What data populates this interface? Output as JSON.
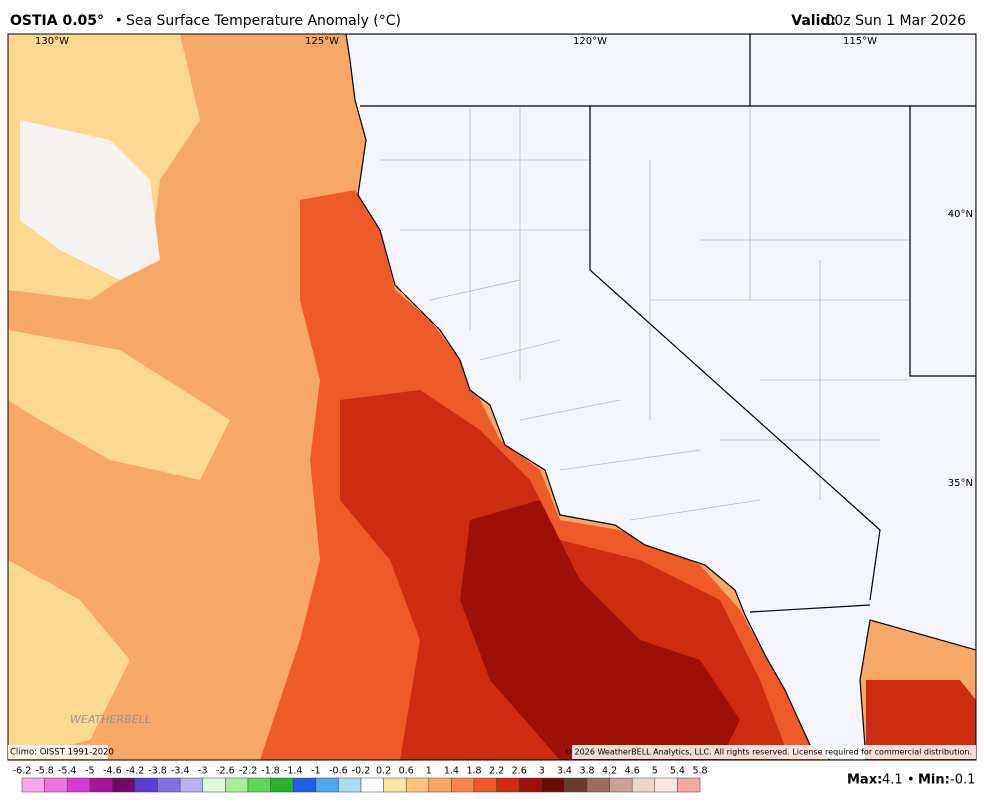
{
  "header": {
    "product": "OSTIA 0.05°",
    "separator": "•",
    "title": "Sea Surface Temperature Anomaly (°C)",
    "valid_label": "Valid:",
    "valid_time": "00z Sun 1 Mar 2026"
  },
  "map": {
    "lon_labels": [
      "130°W",
      "125°W",
      "120°W",
      "115°W"
    ],
    "lat_labels": [
      "40°N",
      "35°N"
    ],
    "logo": "WEATHERBELL",
    "climo": "Climo: OISST 1991-2020",
    "copyright": "© 2026 WeatherBELL Analytics, LLC. All rights reserved. License required for commercial distribution."
  },
  "legend": {
    "ticks": [
      -6.2,
      -5.8,
      -5.4,
      -5,
      -4.6,
      -4.2,
      -3.8,
      -3.4,
      -3,
      -2.6,
      -2.2,
      -1.8,
      -1.4,
      -1,
      -0.6,
      -0.2,
      0.2,
      0.6,
      1,
      1.4,
      1.8,
      2.2,
      2.6,
      3,
      3.4,
      3.8,
      4.2,
      4.6,
      5,
      5.4,
      5.8
    ],
    "colors": [
      "#f7a8ea",
      "#ef72e0",
      "#d93ccc",
      "#a81596",
      "#6e0c68",
      "#5a3cd0",
      "#8070e0",
      "#b8b0f0",
      "#e2f9dc",
      "#a8ee98",
      "#5cd858",
      "#28b030",
      "#2060e0",
      "#50a8f0",
      "#a8dcf8",
      "#ffffff",
      "#fde4a0",
      "#fdc47c",
      "#fba462",
      "#f7844a",
      "#ee5a28",
      "#cc2c10",
      "#9c1006",
      "#6c0a04",
      "#6a3a2e",
      "#9c6c5c",
      "#c8a294",
      "#ecd6cc",
      "#fbe6e2",
      "#f4a8a8"
    ]
  },
  "stats": {
    "max_label": "Max:",
    "max": 4.1,
    "separator": "•",
    "min_label": "Min:",
    "min": -0.1
  }
}
